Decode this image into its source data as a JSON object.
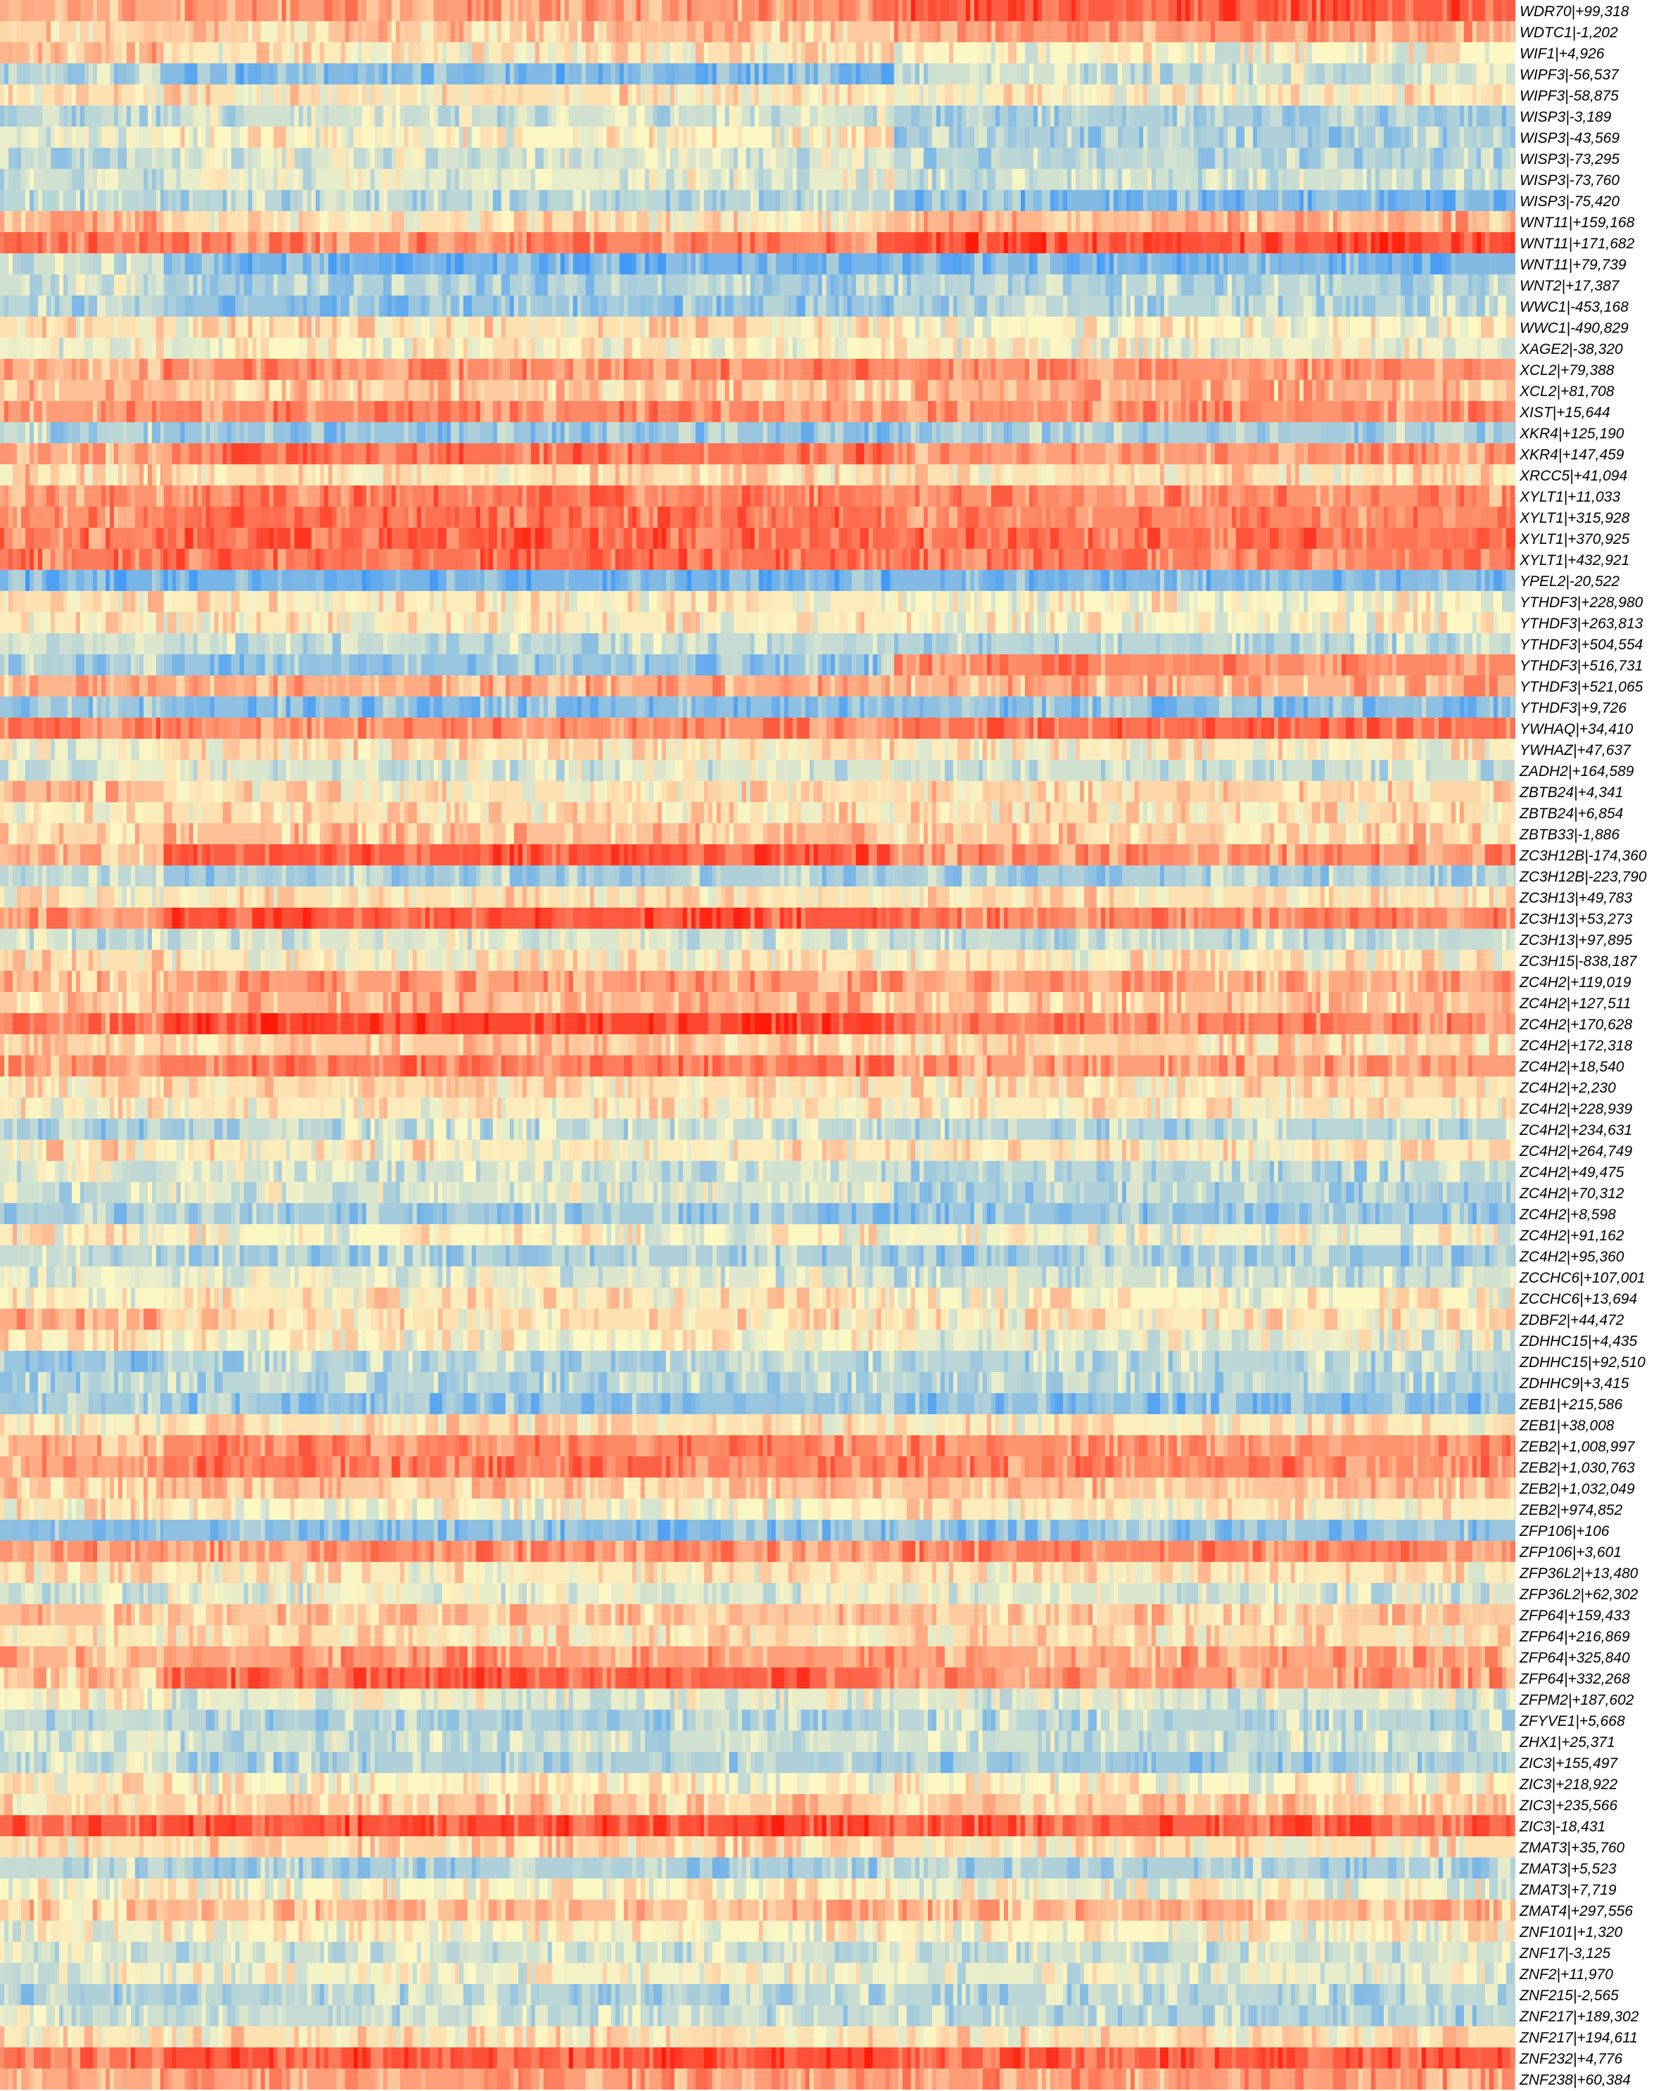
{
  "chart_data": {
    "type": "heatmap",
    "title": "",
    "xlabel": "",
    "ylabel": "",
    "legend": "none",
    "grid": false,
    "color_scale": {
      "low": "#1e88ff",
      "mid": "#fdf7c4",
      "high": "#ff1a0a",
      "range": [
        -1,
        1
      ]
    },
    "column_blocks": [
      {
        "start": 0,
        "end": 0.108
      },
      {
        "start": 0.108,
        "end": 0.59
      },
      {
        "start": 0.59,
        "end": 1.0
      }
    ],
    "rows": [
      {
        "label": "WDR70|+99,318",
        "values": [
          0.35,
          0.4,
          0.7
        ]
      },
      {
        "label": "WDTC1|-1,202",
        "values": [
          0.15,
          0.2,
          0.4
        ]
      },
      {
        "label": "WIF1|+4,926",
        "values": [
          0.3,
          0.05,
          0.0
        ]
      },
      {
        "label": "WIPF3|-56,537",
        "values": [
          -0.3,
          -0.55,
          -0.2
        ]
      },
      {
        "label": "WIPF3|-58,875",
        "values": [
          0.1,
          0.1,
          0.05
        ]
      },
      {
        "label": "WISP3|-3,189",
        "values": [
          -0.3,
          -0.2,
          -0.35
        ]
      },
      {
        "label": "WISP3|-43,569",
        "values": [
          -0.1,
          0.0,
          -0.35
        ]
      },
      {
        "label": "WISP3|-73,295",
        "values": [
          -0.25,
          -0.15,
          -0.3
        ]
      },
      {
        "label": "WISP3|-73,760",
        "values": [
          -0.2,
          -0.1,
          -0.2
        ]
      },
      {
        "label": "WISP3|-75,420",
        "values": [
          -0.3,
          -0.3,
          -0.55
        ]
      },
      {
        "label": "WNT11|+159,168",
        "values": [
          0.3,
          0.1,
          0.3
        ]
      },
      {
        "label": "WNT11|+171,682",
        "values": [
          0.55,
          0.5,
          0.75
        ]
      },
      {
        "label": "WNT11|+79,739",
        "values": [
          -0.2,
          -0.6,
          -0.55
        ]
      },
      {
        "label": "WNT2|+17,387",
        "values": [
          -0.2,
          -0.35,
          -0.3
        ]
      },
      {
        "label": "WWC1|-453,168",
        "values": [
          -0.3,
          -0.45,
          -0.3
        ]
      },
      {
        "label": "WWC1|-490,829",
        "values": [
          0.1,
          0.1,
          0.0
        ]
      },
      {
        "label": "XAGE2|-38,320",
        "values": [
          -0.05,
          0.0,
          -0.05
        ]
      },
      {
        "label": "XCL2|+79,388",
        "values": [
          0.3,
          0.5,
          0.45
        ]
      },
      {
        "label": "XCL2|+81,708",
        "values": [
          0.25,
          0.2,
          0.3
        ]
      },
      {
        "label": "XIST|+15,644",
        "values": [
          0.4,
          0.5,
          0.45
        ]
      },
      {
        "label": "XKR4|+125,190",
        "values": [
          -0.3,
          -0.45,
          -0.35
        ]
      },
      {
        "label": "XKR4|+147,459",
        "values": [
          0.3,
          0.6,
          0.4
        ]
      },
      {
        "label": "XRCC5|+41,094",
        "values": [
          0.2,
          0.1,
          0.1
        ]
      },
      {
        "label": "XYLT1|+11,033",
        "values": [
          0.45,
          0.55,
          0.45
        ]
      },
      {
        "label": "XYLT1|+315,928",
        "values": [
          0.45,
          0.6,
          0.5
        ]
      },
      {
        "label": "XYLT1|+370,925",
        "values": [
          0.55,
          0.65,
          0.6
        ]
      },
      {
        "label": "XYLT1|+432,921",
        "values": [
          0.55,
          0.6,
          0.55
        ]
      },
      {
        "label": "YPEL2|-20,522",
        "values": [
          -0.6,
          -0.6,
          -0.55
        ]
      },
      {
        "label": "YTHDF3|+228,980",
        "values": [
          0.1,
          0.05,
          0.0
        ]
      },
      {
        "label": "YTHDF3|+263,813",
        "values": [
          0.05,
          0.05,
          0.0
        ]
      },
      {
        "label": "YTHDF3|+504,554",
        "values": [
          -0.15,
          -0.25,
          -0.3
        ]
      },
      {
        "label": "YTHDF3|+516,731",
        "values": [
          -0.35,
          -0.45,
          0.5
        ]
      },
      {
        "label": "YTHDF3|+521,065",
        "values": [
          0.3,
          0.35,
          0.3
        ]
      },
      {
        "label": "YTHDF3|+9,726",
        "values": [
          -0.45,
          -0.5,
          -0.5
        ]
      },
      {
        "label": "YWHAQ|+34,410",
        "values": [
          0.55,
          0.45,
          0.6
        ]
      },
      {
        "label": "YWHAZ|+47,637",
        "values": [
          -0.05,
          0.1,
          0.05
        ]
      },
      {
        "label": "ZADH2|+164,589",
        "values": [
          -0.1,
          -0.15,
          -0.2
        ]
      },
      {
        "label": "ZBTB24|+4,341",
        "values": [
          0.25,
          0.1,
          0.15
        ]
      },
      {
        "label": "ZBTB24|+6,854",
        "values": [
          0.05,
          0.1,
          0.1
        ]
      },
      {
        "label": "ZBTB33|-1,886",
        "values": [
          0.15,
          0.25,
          0.2
        ]
      },
      {
        "label": "ZC3H12B|-174,360",
        "values": [
          0.25,
          0.7,
          0.45
        ]
      },
      {
        "label": "ZC3H12B|-223,790",
        "values": [
          -0.3,
          -0.35,
          -0.35
        ]
      },
      {
        "label": "ZC3H13|+49,783",
        "values": [
          0.05,
          0.1,
          0.1
        ]
      },
      {
        "label": "ZC3H13|+53,273",
        "values": [
          0.4,
          0.7,
          0.5
        ]
      },
      {
        "label": "ZC3H13|+97,895",
        "values": [
          -0.2,
          -0.15,
          -0.25
        ]
      },
      {
        "label": "ZC3H15|-838,187",
        "values": [
          0.1,
          0.05,
          0.05
        ]
      },
      {
        "label": "ZC4H2|+119,019",
        "values": [
          0.3,
          0.4,
          0.35
        ]
      },
      {
        "label": "ZC4H2|+127,511",
        "values": [
          0.2,
          0.3,
          0.25
        ]
      },
      {
        "label": "ZC4H2|+170,628",
        "values": [
          0.5,
          0.8,
          0.5
        ]
      },
      {
        "label": "ZC4H2|+172,318",
        "values": [
          0.15,
          0.2,
          0.15
        ]
      },
      {
        "label": "ZC4H2|+18,540",
        "values": [
          0.35,
          0.55,
          0.4
        ]
      },
      {
        "label": "ZC4H2|+2,230",
        "values": [
          0.1,
          0.1,
          0.1
        ]
      },
      {
        "label": "ZC4H2|+228,939",
        "values": [
          0.05,
          0.05,
          0.05
        ]
      },
      {
        "label": "ZC4H2|+234,631",
        "values": [
          -0.4,
          -0.25,
          -0.3
        ]
      },
      {
        "label": "ZC4H2|+264,749",
        "values": [
          0.1,
          0.05,
          0.05
        ]
      },
      {
        "label": "ZC4H2|+49,475",
        "values": [
          -0.15,
          -0.2,
          -0.3
        ]
      },
      {
        "label": "ZC4H2|+70,312",
        "values": [
          -0.2,
          -0.15,
          -0.35
        ]
      },
      {
        "label": "ZC4H2|+8,598",
        "values": [
          -0.35,
          -0.4,
          -0.45
        ]
      },
      {
        "label": "ZC4H2|+91,162",
        "values": [
          0.05,
          0.0,
          -0.05
        ]
      },
      {
        "label": "ZC4H2|+95,360",
        "values": [
          -0.25,
          -0.35,
          -0.4
        ]
      },
      {
        "label": "ZCCHC6|+107,001",
        "values": [
          -0.1,
          -0.15,
          -0.2
        ]
      },
      {
        "label": "ZCCHC6|+13,694",
        "values": [
          0.0,
          0.05,
          0.0
        ]
      },
      {
        "label": "ZDBF2|+44,472",
        "values": [
          0.35,
          0.1,
          0.05
        ]
      },
      {
        "label": "ZDHHC15|+4,435",
        "values": [
          0.2,
          0.0,
          -0.1
        ]
      },
      {
        "label": "ZDHHC15|+92,510",
        "values": [
          -0.45,
          -0.3,
          -0.3
        ]
      },
      {
        "label": "ZDHHC9|+3,415",
        "values": [
          -0.35,
          -0.3,
          -0.3
        ]
      },
      {
        "label": "ZEB1|+215,586",
        "values": [
          -0.4,
          -0.45,
          -0.5
        ]
      },
      {
        "label": "ZEB1|+38,008",
        "values": [
          0.05,
          0.1,
          0.05
        ]
      },
      {
        "label": "ZEB2|+1,008,997",
        "values": [
          0.3,
          0.5,
          0.45
        ]
      },
      {
        "label": "ZEB2|+1,030,763",
        "values": [
          0.35,
          0.55,
          0.5
        ]
      },
      {
        "label": "ZEB2|+1,032,049",
        "values": [
          0.2,
          0.2,
          0.25
        ]
      },
      {
        "label": "ZEB2|+974,852",
        "values": [
          0.1,
          0.0,
          0.05
        ]
      },
      {
        "label": "ZFP106|+106",
        "values": [
          -0.5,
          -0.5,
          -0.45
        ]
      },
      {
        "label": "ZFP106|+3,601",
        "values": [
          0.45,
          0.45,
          0.5
        ]
      },
      {
        "label": "ZFP36L2|+13,480",
        "values": [
          0.1,
          0.05,
          0.05
        ]
      },
      {
        "label": "ZFP36L2|+62,302",
        "values": [
          -0.15,
          -0.1,
          -0.15
        ]
      },
      {
        "label": "ZFP64|+159,433",
        "values": [
          0.25,
          0.2,
          0.2
        ]
      },
      {
        "label": "ZFP64|+216,869",
        "values": [
          0.05,
          0.1,
          0.1
        ]
      },
      {
        "label": "ZFP64|+325,840",
        "values": [
          0.3,
          0.4,
          0.35
        ]
      },
      {
        "label": "ZFP64|+332,268",
        "values": [
          0.2,
          0.65,
          0.4
        ]
      },
      {
        "label": "ZFPM2|+187,602",
        "values": [
          0.0,
          -0.1,
          -0.15
        ]
      },
      {
        "label": "ZFYVE1|+5,668",
        "values": [
          -0.25,
          -0.35,
          -0.3
        ]
      },
      {
        "label": "ZHX1|+25,371",
        "values": [
          -0.1,
          -0.2,
          -0.2
        ]
      },
      {
        "label": "ZIC3|+155,497",
        "values": [
          -0.2,
          -0.35,
          -0.4
        ]
      },
      {
        "label": "ZIC3|+218,922",
        "values": [
          0.05,
          0.0,
          0.0
        ]
      },
      {
        "label": "ZIC3|+235,566",
        "values": [
          0.15,
          0.2,
          0.2
        ]
      },
      {
        "label": "ZIC3|-18,431",
        "values": [
          0.65,
          0.75,
          0.65
        ]
      },
      {
        "label": "ZMAT3|+35,760",
        "values": [
          0.1,
          0.15,
          0.1
        ]
      },
      {
        "label": "ZMAT3|+5,523",
        "values": [
          -0.25,
          -0.35,
          -0.35
        ]
      },
      {
        "label": "ZMAT3|+7,719",
        "values": [
          0.0,
          0.0,
          -0.05
        ]
      },
      {
        "label": "ZMAT4|+297,556",
        "values": [
          0.2,
          0.25,
          0.3
        ]
      },
      {
        "label": "ZNF101|+1,320",
        "values": [
          -0.05,
          0.0,
          0.0
        ]
      },
      {
        "label": "ZNF17|-3,125",
        "values": [
          -0.15,
          -0.2,
          -0.2
        ]
      },
      {
        "label": "ZNF2|+11,970",
        "values": [
          -0.05,
          -0.05,
          -0.1
        ]
      },
      {
        "label": "ZNF215|-2,565",
        "values": [
          -0.35,
          -0.3,
          -0.3
        ]
      },
      {
        "label": "ZNF217|+189,302",
        "values": [
          -0.2,
          -0.25,
          -0.3
        ]
      },
      {
        "label": "ZNF217|+194,611",
        "values": [
          0.05,
          0.1,
          0.1
        ]
      },
      {
        "label": "ZNF232|+4,776",
        "values": [
          0.6,
          0.75,
          0.7
        ]
      },
      {
        "label": "ZNF238|+60,384",
        "values": [
          0.35,
          0.4,
          0.4
        ]
      }
    ]
  }
}
